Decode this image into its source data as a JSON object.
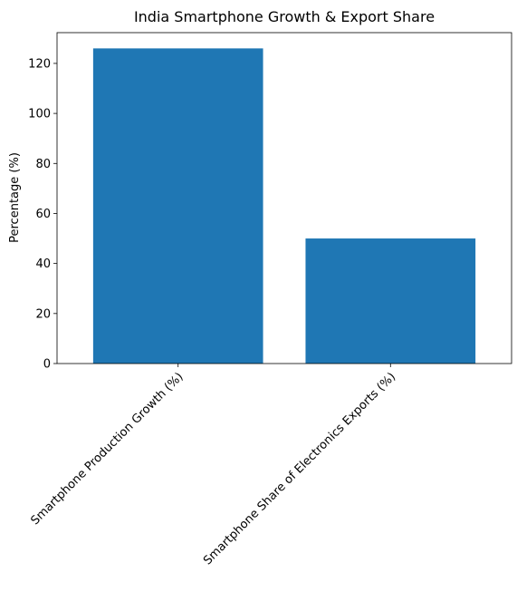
{
  "chart_data": {
    "type": "bar",
    "title": "India Smartphone Growth & Export Share",
    "xlabel": "",
    "ylabel": "Percentage (%)",
    "categories": [
      "Smartphone Production Growth (%)",
      "Smartphone Share of Electronics Exports (%)"
    ],
    "values": [
      126,
      50
    ],
    "ylim": [
      0,
      132.3
    ],
    "yticks": [
      0,
      20,
      40,
      60,
      80,
      100,
      120
    ],
    "bar_color": "#1f77b4",
    "grid": false,
    "legend": "none"
  }
}
